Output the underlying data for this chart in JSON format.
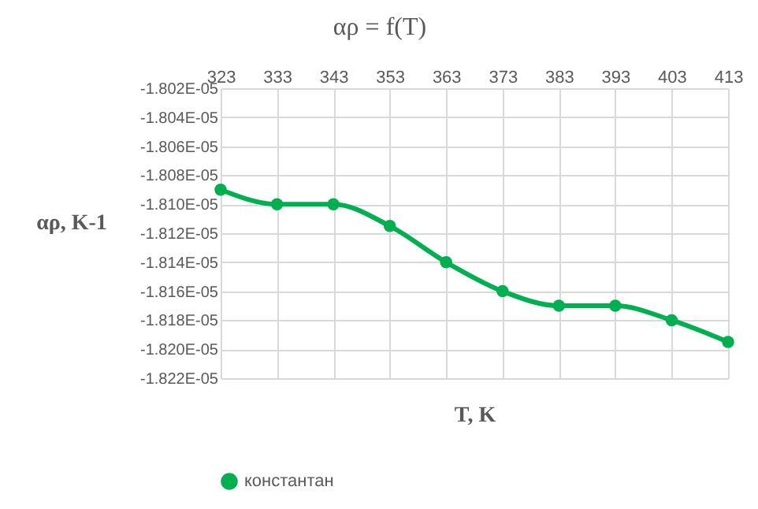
{
  "chart_data": {
    "type": "line",
    "title": "αρ = f(T)",
    "xlabel": "T, K",
    "ylabel": "αρ, K-1",
    "x": [
      323,
      333,
      343,
      353,
      363,
      373,
      383,
      393,
      403,
      413
    ],
    "series": [
      {
        "name": "константан",
        "color": "#00b050",
        "values": [
          -1.809e-05,
          -1.81e-05,
          -1.81e-05,
          -1.8115e-05,
          -1.814e-05,
          -1.816e-05,
          -1.817e-05,
          -1.817e-05,
          -1.818e-05,
          -1.8195e-05
        ]
      }
    ],
    "xlim": [
      323,
      413
    ],
    "xticks": [
      323,
      333,
      343,
      353,
      363,
      373,
      383,
      393,
      403,
      413
    ],
    "ylim": [
      -1.822e-05,
      -1.802e-05
    ],
    "yticks": [
      {
        "value": -1.822e-05,
        "label": "-1.822E-05"
      },
      {
        "value": -1.82e-05,
        "label": "-1.820E-05"
      },
      {
        "value": -1.818e-05,
        "label": "-1.818E-05"
      },
      {
        "value": -1.816e-05,
        "label": "-1.816E-05"
      },
      {
        "value": -1.814e-05,
        "label": "-1.814E-05"
      },
      {
        "value": -1.812e-05,
        "label": "-1.812E-05"
      },
      {
        "value": -1.81e-05,
        "label": "-1.810E-05"
      },
      {
        "value": -1.808e-05,
        "label": "-1.808E-05"
      },
      {
        "value": -1.806e-05,
        "label": "-1.806E-05"
      },
      {
        "value": -1.804e-05,
        "label": "-1.804E-05"
      },
      {
        "value": -1.802e-05,
        "label": "-1.802E-05"
      }
    ],
    "grid": true,
    "legend": "bottom",
    "marker": "circle",
    "line_style": "solid"
  }
}
